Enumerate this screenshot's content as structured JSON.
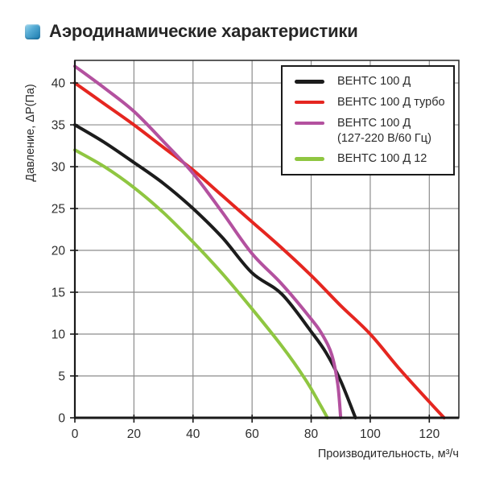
{
  "page": {
    "title": "Аэродинамические характеристики"
  },
  "icons": {
    "title_bullet": "blue-glossy-square"
  },
  "colors": {
    "accent_blue": "#1879ad",
    "grid": "#8c8c8c",
    "axis": "#1a1a1a",
    "text": "#2b2b2b"
  },
  "chart_data": {
    "type": "line",
    "title": "Аэродинамические характеристики",
    "xlabel": "Производительность, м³/ч",
    "ylabel": "Давление, ΔP(Па)",
    "xlim": [
      0,
      130
    ],
    "ylim": [
      0,
      42.7
    ],
    "x_ticks": [
      0,
      20,
      40,
      60,
      80,
      100,
      120
    ],
    "y_ticks": [
      0,
      5,
      10,
      15,
      20,
      25,
      30,
      35,
      40
    ],
    "grid": true,
    "legend_position": "top-right",
    "series": [
      {
        "name": "ВЕНТС 100 Д",
        "legend_lines": [
          "ВЕНТС 100 Д"
        ],
        "color": "#1c1c1c",
        "points": [
          [
            0,
            35
          ],
          [
            10,
            32.9
          ],
          [
            20,
            30.5
          ],
          [
            30,
            28
          ],
          [
            40,
            25
          ],
          [
            50,
            21.5
          ],
          [
            60,
            17.3
          ],
          [
            70,
            14.8
          ],
          [
            80,
            10.3
          ],
          [
            85,
            7.8
          ],
          [
            90,
            4.4
          ],
          [
            95,
            0
          ]
        ]
      },
      {
        "name": "ВЕНТС 100 Д турбо",
        "legend_lines": [
          "ВЕНТС 100 Д турбо"
        ],
        "color": "#e52620",
        "points": [
          [
            0,
            40
          ],
          [
            10,
            37.5
          ],
          [
            20,
            35
          ],
          [
            30,
            32.3
          ],
          [
            40,
            29.6
          ],
          [
            50,
            26.5
          ],
          [
            60,
            23.4
          ],
          [
            70,
            20.3
          ],
          [
            80,
            17
          ],
          [
            90,
            13.4
          ],
          [
            100,
            10
          ],
          [
            110,
            5.8
          ],
          [
            120,
            1.9
          ],
          [
            125,
            0
          ]
        ]
      },
      {
        "name": "ВЕНТС 100 Д (127-220 В/60 Гц)",
        "legend_lines": [
          "ВЕНТС 100 Д",
          "(127-220 В/60 Гц)"
        ],
        "color": "#b3519f",
        "points": [
          [
            0,
            42
          ],
          [
            10,
            39.4
          ],
          [
            20,
            36.6
          ],
          [
            30,
            33
          ],
          [
            40,
            29.2
          ],
          [
            50,
            24.5
          ],
          [
            60,
            19.6
          ],
          [
            70,
            16
          ],
          [
            80,
            11.8
          ],
          [
            84,
            9.8
          ],
          [
            87,
            7.5
          ],
          [
            89,
            4
          ],
          [
            90,
            0
          ]
        ]
      },
      {
        "name": "ВЕНТС 100 Д 12",
        "legend_lines": [
          "ВЕНТС 100 Д 12"
        ],
        "color": "#8fc641",
        "points": [
          [
            0,
            32
          ],
          [
            10,
            30
          ],
          [
            20,
            27.5
          ],
          [
            30,
            24.5
          ],
          [
            40,
            21
          ],
          [
            50,
            17.2
          ],
          [
            60,
            13
          ],
          [
            70,
            8.6
          ],
          [
            78,
            4.6
          ],
          [
            83,
            1.6
          ],
          [
            85.5,
            0
          ]
        ]
      }
    ]
  }
}
